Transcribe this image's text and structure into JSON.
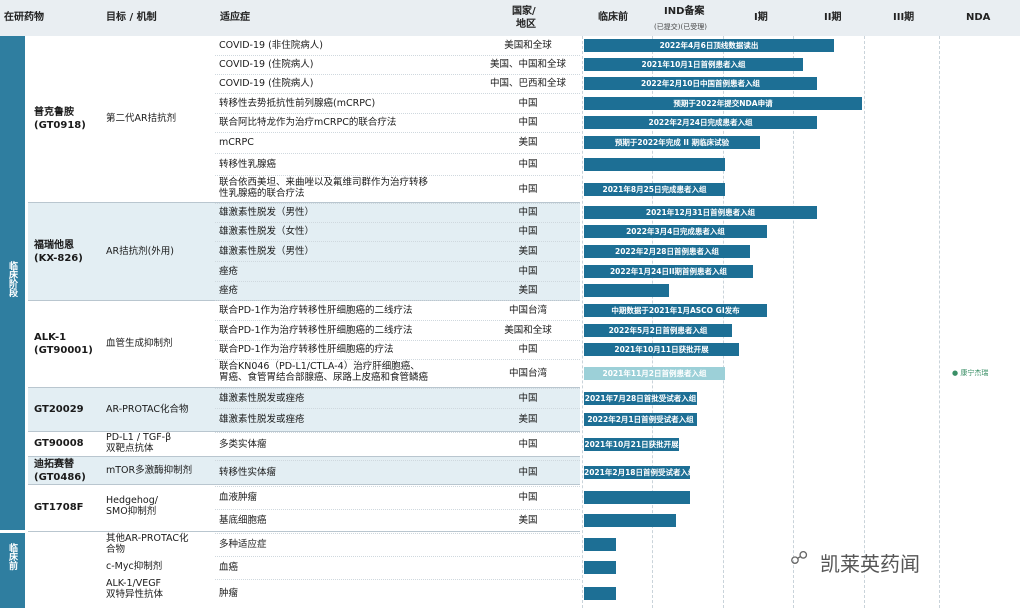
{
  "header": {
    "drug": "在研药物",
    "target": "目标 / 机制",
    "indication": "适应症",
    "country_line1": "国家/",
    "country_line2": "地区",
    "preclinical": "临床前",
    "ind": "IND备案",
    "ind_sub": "(已提交)(已受理)",
    "p1": "I期",
    "p2": "II期",
    "p3": "III期",
    "nda": "NDA"
  },
  "sections": {
    "clinical": "临床阶段",
    "preclinical": "临床前"
  },
  "drugs": {
    "proxalutamide": {
      "name1": "普克鲁胺",
      "name2": "(GT0918)",
      "mech": "第二代AR拮抗剂"
    },
    "kx826": {
      "name1": "福瑞他恩",
      "name2": "(KX-826)",
      "mech": "AR拮抗剂(外用)"
    },
    "alk1": {
      "name1": "ALK-1",
      "name2": "(GT90001)",
      "mech": "血管生成抑制剂"
    },
    "gt20029": {
      "name1": "GT20029",
      "mech": "AR-PROTAC化合物"
    },
    "gt90008": {
      "name1": "GT90008",
      "mech1": "PD-L1 / TGF-β",
      "mech2": "双靶点抗体"
    },
    "gt0486": {
      "name1": "迪拓赛替",
      "name2": "(GT0486)",
      "mech": "mTOR多激酶抑制剂"
    },
    "gt1708f": {
      "name1": "GT1708F",
      "mech1": "Hedgehog/",
      "mech2": "SMO抑制剂"
    },
    "pre1": {
      "mech1": "其他AR-PROTAC化",
      "mech2": "合物"
    },
    "pre2": {
      "mech": "c-Myc抑制剂"
    },
    "pre3": {
      "mech1": "ALK-1/VEGF",
      "mech2": "双特异性抗体"
    }
  },
  "rows": [
    {
      "ind": "COVID-19 (非住院病人)",
      "country": "美国和全球",
      "bar": "2022年4月6日顶线数据读出",
      "phase": 3.55
    },
    {
      "ind": "COVID-19 (住院病人)",
      "country": "美国、中国和全球",
      "bar": "2021年10月1日首例患者入组",
      "phase": 3.1
    },
    {
      "ind": "COVID-19 (住院病人)",
      "country": "中国、巴西和全球",
      "bar": "2022年2月10日中国首例患者入组",
      "phase": 3.3
    },
    {
      "ind": "转移性去势抵抗性前列腺癌(mCRPC)",
      "country": "中国",
      "bar": "预期于2022年提交NDA申请",
      "phase": 3.95
    },
    {
      "ind": "联合阿比特龙作为治疗mCRPC的联合疗法",
      "country": "中国",
      "bar": "2022年2月24日完成患者入组",
      "phase": 3.3
    },
    {
      "ind": "mCRPC",
      "country": "美国",
      "bar": "预期于2022年完成 II 期临床试验",
      "phase": 2.5
    },
    {
      "ind": "转移性乳腺癌",
      "country": "中国",
      "bar": "",
      "phase": 2.0
    },
    {
      "ind1": "联合依西美坦、来曲唑以及氟维司群作为治疗转移",
      "ind2": "性乳腺癌的联合疗法",
      "country": "中国",
      "bar": "2021年8月25日完成患者入组",
      "phase": 2.0
    },
    {
      "ind": "雄激素性脱发（男性）",
      "country": "中国",
      "bar": "2021年12月31日首例患者入组",
      "phase": 3.3
    },
    {
      "ind": "雄激素性脱发（女性）",
      "country": "中国",
      "bar": "2022年3月4日完成患者入组",
      "phase": 2.6
    },
    {
      "ind": "雄激素性脱发（男性）",
      "country": "美国",
      "bar": "2022年2月28日首例患者入组",
      "phase": 2.35
    },
    {
      "ind": "痤疮",
      "country": "中国",
      "bar": "2022年1月24日II期首例患者入组",
      "phase": 2.4
    },
    {
      "ind": "痤疮",
      "country": "美国",
      "bar": "",
      "phase": 1.2
    },
    {
      "ind": "联合PD-1作为治疗转移性肝细胞癌的二线疗法",
      "country": "中国台湾",
      "bar": "中期数据于2021年1月ASCO GI发布",
      "phase": 2.6
    },
    {
      "ind": "联合PD-1作为治疗转移性肝细胞癌的二线疗法",
      "country": "美国和全球",
      "bar": "2022年5月2日首例患者入组",
      "phase": 2.1
    },
    {
      "ind": "联合PD-1作为治疗转移性肝细胞癌的疗法",
      "country": "中国",
      "bar": "2021年10月11日获批开展",
      "phase": 2.2
    },
    {
      "ind1": "联合KN046（PD-L1/CTLA-4）治疗肝细胞癌、",
      "ind2": "胃癌、食管胃结合部腺癌、尿路上皮癌和食管鳞癌",
      "country": "中国台湾",
      "bar": "2021年11月2日首例患者入组",
      "phase": 2.0
    },
    {
      "ind": "雄激素性脱发或痤疮",
      "country": "中国",
      "bar": "2021年7月28日首批受试者入组",
      "phase": 1.6
    },
    {
      "ind": "雄激素性脱发或痤疮",
      "country": "美国",
      "bar": "2022年2月1日首例受试者入组",
      "phase": 1.6
    },
    {
      "ind": "多类实体瘤",
      "country": "中国",
      "bar": "2021年10月21日获批开展",
      "phase": 1.35
    },
    {
      "ind": "转移性实体瘤",
      "country": "中国",
      "bar": "2021年2月18日首例受试者入组",
      "phase": 1.5
    },
    {
      "ind": "血液肿瘤",
      "country": "中国",
      "bar": "",
      "phase": 1.5
    },
    {
      "ind": "基底细胞癌",
      "country": "美国",
      "bar": "",
      "phase": 1.3
    },
    {
      "ind": "多种适应症",
      "country": "",
      "bar": "",
      "phase": 0.45
    },
    {
      "ind": "血癌",
      "country": "",
      "bar": "",
      "phase": 0.45
    },
    {
      "ind": "肿瘤",
      "country": "",
      "bar": "",
      "phase": 0.45
    }
  ],
  "logo_text": "康宁杰瑞",
  "watermark": "凯莱英药闻",
  "colors": {
    "bar": "#1d6f95",
    "bar_light": "#9cd0d8",
    "side": "#2f7ea0",
    "band": "#e3eef3"
  }
}
